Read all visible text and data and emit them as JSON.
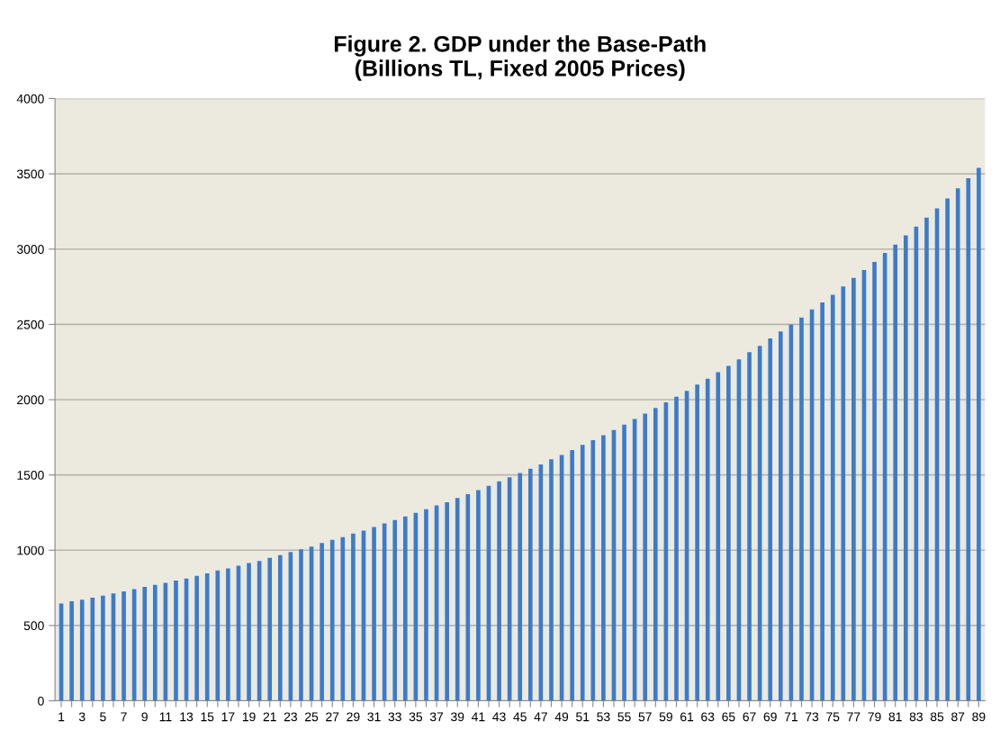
{
  "chart_data": {
    "type": "bar",
    "title": "Figure 2. GDP under the Base-Path\n(Billions TL, Fixed 2005 Prices)",
    "categories": [
      "1",
      null,
      "3",
      null,
      "5",
      null,
      "7",
      null,
      "9",
      null,
      "11",
      null,
      "13",
      null,
      "15",
      null,
      "17",
      null,
      "19",
      null,
      "21",
      null,
      "23",
      null,
      "25",
      null,
      "27",
      null,
      "29",
      null,
      "31",
      null,
      "33",
      null,
      "35",
      null,
      "37",
      null,
      "39",
      null,
      "41",
      null,
      "43",
      null,
      "45",
      null,
      "47",
      null,
      "49",
      null,
      "51",
      null,
      "53",
      null,
      "55",
      null,
      "57",
      null,
      "59",
      null,
      "61",
      null,
      "63",
      null,
      "65",
      null,
      "67",
      null,
      "69",
      null,
      "71",
      null,
      "73",
      null,
      "75",
      null,
      "77",
      null,
      "79",
      null,
      "81",
      null,
      "83",
      null,
      "85",
      null,
      "87",
      null,
      "89"
    ],
    "values": [
      646,
      661,
      671,
      685,
      699,
      713,
      727,
      741,
      756,
      770,
      784,
      798,
      812,
      830,
      847,
      865,
      879,
      897,
      915,
      929,
      950,
      968,
      988,
      1006,
      1024,
      1048,
      1069,
      1087,
      1111,
      1130,
      1154,
      1178,
      1200,
      1224,
      1248,
      1273,
      1297,
      1319,
      1347,
      1372,
      1400,
      1428,
      1457,
      1485,
      1513,
      1541,
      1570,
      1604,
      1632,
      1665,
      1699,
      1731,
      1764,
      1798,
      1834,
      1871,
      1907,
      1945,
      1982,
      2020,
      2059,
      2101,
      2139,
      2182,
      2224,
      2267,
      2315,
      2358,
      2406,
      2453,
      2499,
      2545,
      2600,
      2646,
      2697,
      2752,
      2808,
      2861,
      2915,
      2974,
      3030,
      3091,
      3150,
      3210,
      3271,
      3337,
      3404,
      3471,
      3539
    ],
    "color": "#3b7bcc",
    "ylim": [
      0,
      4000
    ],
    "yticks": [
      0,
      500,
      1000,
      1500,
      2000,
      2500,
      3000,
      3500,
      4000
    ],
    "grid": "y"
  }
}
